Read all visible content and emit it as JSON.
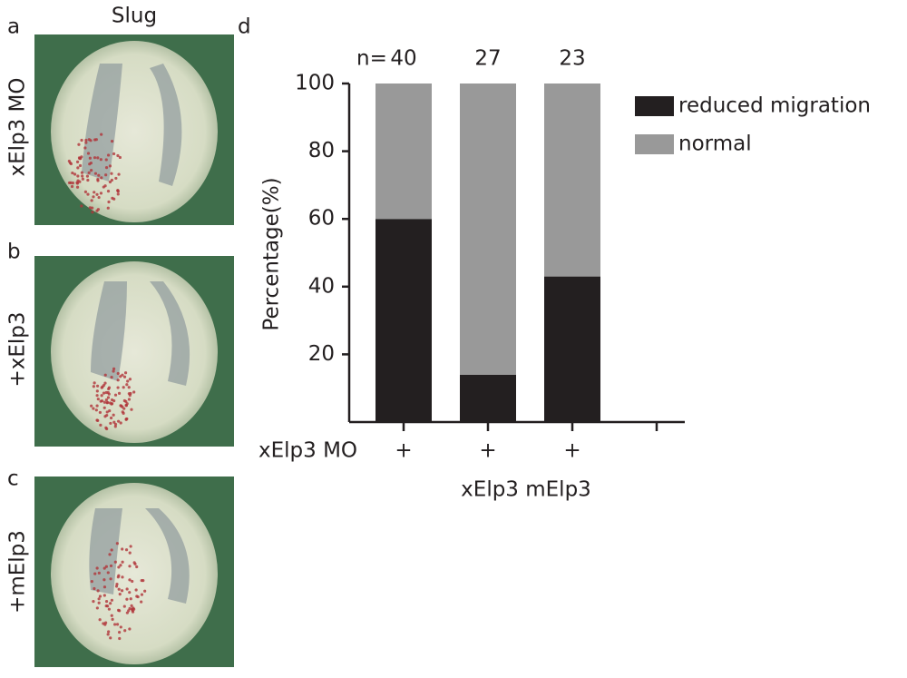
{
  "figure": {
    "panel_labels": [
      "a",
      "b",
      "c",
      "d"
    ],
    "column_title": "Slug",
    "row_labels": [
      "xElp3 MO",
      "+xElp3",
      "+mElp3"
    ]
  },
  "chart_data": {
    "type": "stacked-bar",
    "n_label": "n=",
    "n": [
      40,
      27,
      23
    ],
    "categories": [
      "+",
      "+",
      "+",
      null
    ],
    "x_row_label": "xElp3 MO",
    "x_label": "xElp3 mElp3",
    "y_label": "Percentage(%)",
    "series": [
      {
        "name": "reduced migration",
        "color": "#231f20",
        "values": [
          60,
          14,
          43,
          null
        ]
      },
      {
        "name": "normal",
        "color": "#999999",
        "values": [
          40,
          86,
          57,
          null
        ]
      }
    ],
    "ylim": [
      0,
      100
    ],
    "yticks": [
      20,
      40,
      60,
      80,
      100
    ],
    "legend": "upper right"
  }
}
